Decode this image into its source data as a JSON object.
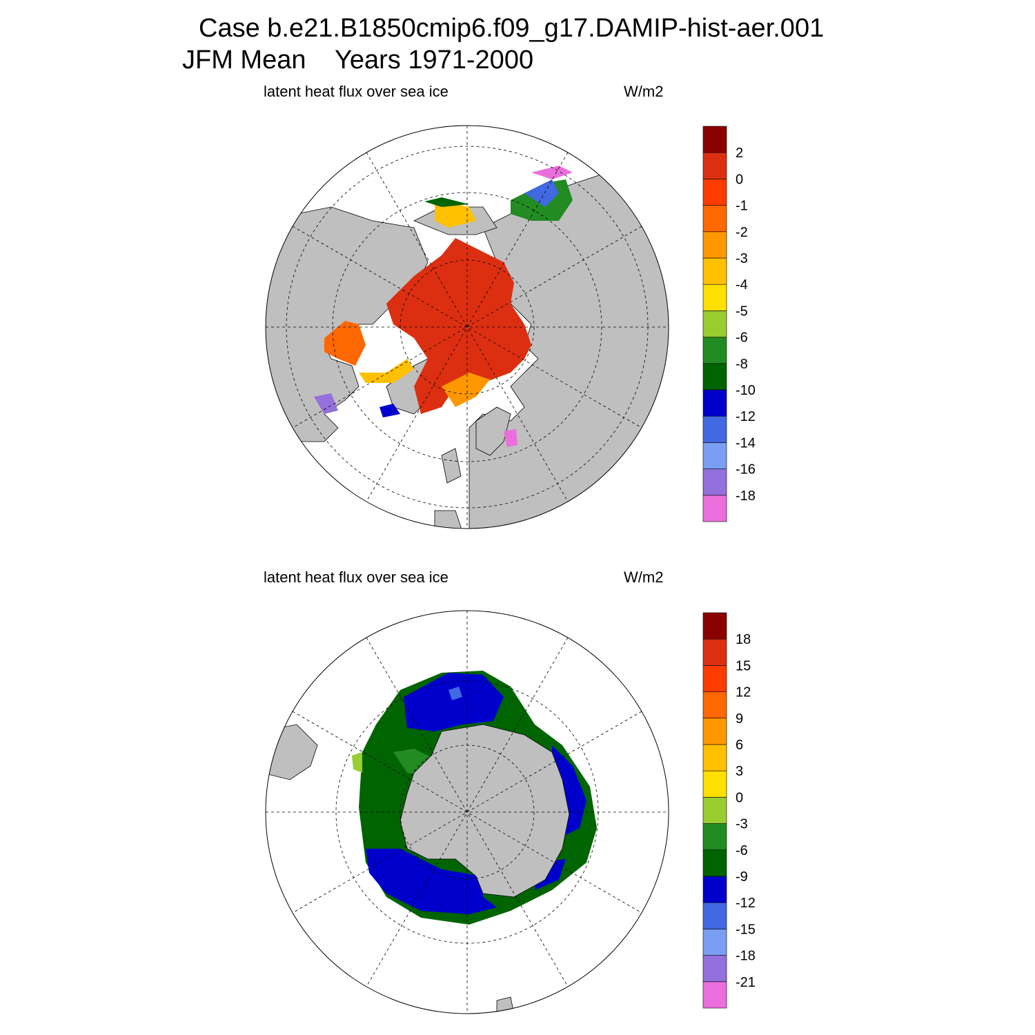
{
  "header": {
    "title_line1": "Case b.e21.B1850cmip6.f09_g17.DAMIP-hist-aer.001",
    "title_line2": "JFM Mean    Years 1971-2000"
  },
  "colors": {
    "land": "#bfbfbf",
    "ocean": "#ffffff",
    "palette": [
      "#ea6fdc",
      "#9370db",
      "#7a9ef2",
      "#4169e1",
      "#0000cd",
      "#006400",
      "#228b22",
      "#9acd32",
      "#ffe000",
      "#ffc000",
      "#ff9800",
      "#ff6800",
      "#ff3c00",
      "#dc2f12",
      "#8b0000"
    ]
  },
  "chart_data": [
    {
      "type": "polar_map",
      "hemisphere": "north",
      "left_label": "latent heat flux over sea ice",
      "right_label": "W/m2",
      "units": "W/m2",
      "colorbar_labels": [
        "2",
        "0",
        "-1",
        "-2",
        "-3",
        "-4",
        "-5",
        "-6",
        "-8",
        "-10",
        "-12",
        "-14",
        "-16",
        "-18"
      ],
      "levels": [
        -18,
        -16,
        -14,
        -12,
        -10,
        -8,
        -6,
        -5,
        -4,
        -3,
        -2,
        -1,
        0,
        2
      ]
    },
    {
      "type": "polar_map",
      "hemisphere": "south",
      "left_label": "latent heat flux over sea ice",
      "right_label": "W/m2",
      "units": "W/m2",
      "colorbar_labels": [
        "18",
        "15",
        "12",
        "9",
        "6",
        "3",
        "0",
        "-3",
        "-6",
        "-9",
        "-12",
        "-15",
        "-18",
        "-21"
      ],
      "levels": [
        -21,
        -18,
        -15,
        -12,
        -9,
        -6,
        -3,
        0,
        3,
        6,
        9,
        12,
        15,
        18
      ]
    }
  ]
}
